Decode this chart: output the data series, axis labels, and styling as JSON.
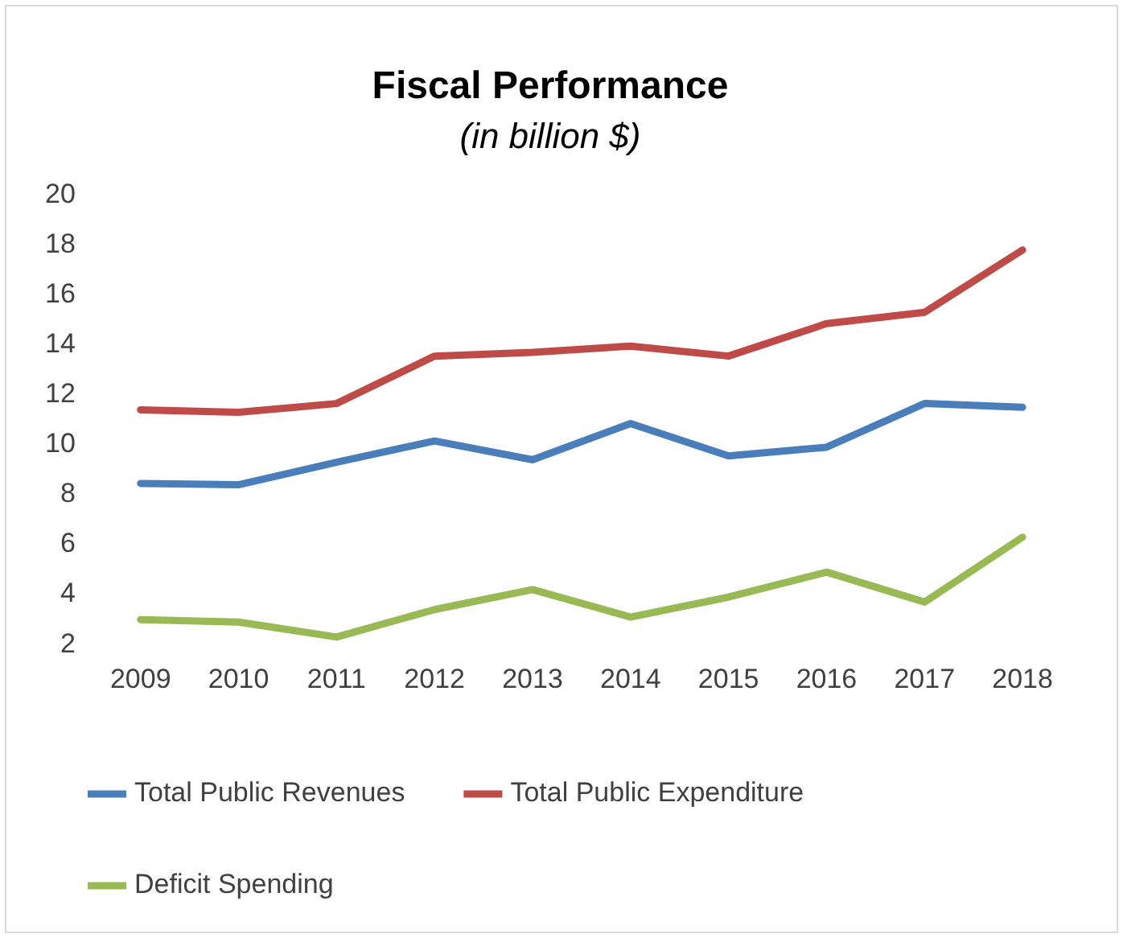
{
  "chart_data": {
    "type": "line",
    "title": "Fiscal Performance",
    "subtitle": "(in billion $)",
    "categories": [
      "2009",
      "2010",
      "2011",
      "2012",
      "2013",
      "2014",
      "2015",
      "2016",
      "2017",
      "2018"
    ],
    "series": [
      {
        "name": "Total Public Revenues",
        "color": "#4a7ebb",
        "values": [
          8.45,
          8.4,
          9.3,
          10.15,
          9.4,
          10.85,
          9.55,
          9.9,
          11.65,
          11.5
        ]
      },
      {
        "name": "Total Public Expenditure",
        "color": "#be4b48",
        "values": [
          11.4,
          11.3,
          11.65,
          13.55,
          13.7,
          13.95,
          13.55,
          14.85,
          15.3,
          17.8
        ]
      },
      {
        "name": "Deficit Spending",
        "color": "#98b954",
        "values": [
          3.0,
          2.9,
          2.3,
          3.4,
          4.2,
          3.1,
          3.9,
          4.9,
          3.7,
          6.3
        ]
      }
    ],
    "ylim": [
      2,
      20
    ],
    "yticks": [
      2,
      4,
      6,
      8,
      10,
      12,
      14,
      16,
      18,
      20
    ],
    "grid": false,
    "legend": "bottom",
    "marker": "none",
    "line_style": "solid"
  }
}
